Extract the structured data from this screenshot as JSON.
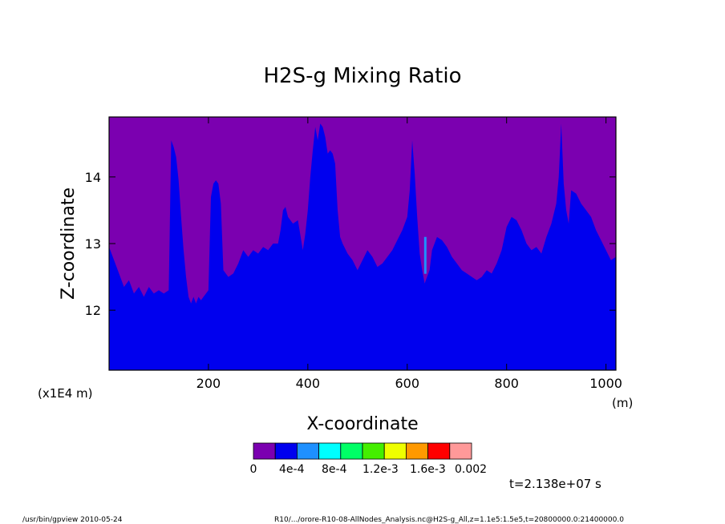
{
  "chart_data": {
    "type": "heatmap",
    "title": "H2S-g Mixing Ratio",
    "xlabel": "X-coordinate",
    "ylabel": "Z-coordinate",
    "x_unit": "(m)",
    "z_unit": "(x1E4 m)",
    "xlim": [
      0,
      1020
    ],
    "zlim": [
      11.1,
      14.9
    ],
    "x_ticks": [
      200,
      400,
      600,
      800,
      1000
    ],
    "z_ticks": [
      12,
      13,
      14
    ],
    "background_value_color": "#7b00b0",
    "body_value_color": "#0000ee",
    "upper_boundary_profile": {
      "description": "top edge of the blue (4e-4 to 8e-4) region, x in m, z in x1E4 m",
      "x": [
        0,
        10,
        20,
        30,
        40,
        50,
        60,
        70,
        80,
        90,
        100,
        110,
        120,
        125,
        130,
        135,
        140,
        145,
        150,
        155,
        160,
        165,
        170,
        175,
        180,
        185,
        190,
        200,
        205,
        210,
        215,
        220,
        225,
        230,
        240,
        250,
        260,
        270,
        280,
        290,
        300,
        310,
        320,
        330,
        340,
        345,
        350,
        355,
        360,
        370,
        380,
        390,
        395,
        400,
        405,
        410,
        415,
        420,
        425,
        430,
        435,
        440,
        445,
        450,
        455,
        460,
        465,
        470,
        480,
        490,
        500,
        510,
        520,
        530,
        540,
        550,
        560,
        570,
        580,
        590,
        600,
        605,
        610,
        615,
        620,
        625,
        630,
        635,
        640,
        645,
        650,
        655,
        660,
        670,
        680,
        690,
        700,
        710,
        720,
        730,
        740,
        750,
        760,
        770,
        780,
        790,
        800,
        810,
        820,
        830,
        840,
        850,
        860,
        870,
        880,
        890,
        900,
        905,
        910,
        915,
        920,
        925,
        930,
        940,
        950,
        960,
        970,
        980,
        990,
        1000,
        1010,
        1020
      ],
      "z": [
        12.95,
        12.75,
        12.55,
        12.35,
        12.45,
        12.25,
        12.35,
        12.2,
        12.35,
        12.25,
        12.3,
        12.25,
        12.3,
        14.55,
        14.45,
        14.3,
        13.95,
        13.4,
        12.9,
        12.5,
        12.2,
        12.1,
        12.2,
        12.1,
        12.2,
        12.15,
        12.2,
        12.3,
        13.7,
        13.9,
        13.95,
        13.9,
        13.6,
        12.6,
        12.5,
        12.55,
        12.7,
        12.9,
        12.8,
        12.9,
        12.85,
        12.95,
        12.9,
        13.0,
        13.0,
        13.2,
        13.5,
        13.55,
        13.4,
        13.3,
        13.35,
        12.9,
        13.15,
        13.5,
        14.0,
        14.4,
        14.75,
        14.55,
        14.8,
        14.75,
        14.6,
        14.35,
        14.4,
        14.35,
        14.2,
        13.5,
        13.1,
        13.0,
        12.85,
        12.75,
        12.6,
        12.75,
        12.9,
        12.8,
        12.65,
        12.7,
        12.8,
        12.9,
        13.05,
        13.2,
        13.4,
        13.8,
        14.55,
        14.05,
        13.4,
        12.85,
        12.6,
        12.4,
        12.5,
        12.6,
        12.9,
        13.0,
        13.1,
        13.05,
        12.95,
        12.8,
        12.7,
        12.6,
        12.55,
        12.5,
        12.45,
        12.5,
        12.6,
        12.55,
        12.7,
        12.9,
        13.25,
        13.4,
        13.35,
        13.2,
        13.0,
        12.9,
        12.95,
        12.85,
        13.1,
        13.3,
        13.6,
        14.0,
        14.8,
        13.9,
        13.5,
        13.3,
        13.8,
        13.75,
        13.6,
        13.5,
        13.4,
        13.2,
        13.05,
        12.9,
        12.75,
        12.8
      ]
    },
    "legend": {
      "labels": [
        "0",
        "4e-4",
        "8e-4",
        "1.2e-3",
        "1.6e-3",
        "0.002"
      ],
      "colors": [
        "#7b00b0",
        "#0000ee",
        "#1e90ff",
        "#00ffff",
        "#00ff66",
        "#44ee00",
        "#eeff00",
        "#ff9900",
        "#ff0000",
        "#ff9999"
      ]
    },
    "time_label": "t=2.138e+07 s"
  },
  "footer": {
    "left": "/usr/bin/gpview  2010-05-24",
    "right": "R10/.../orore-R10-08-AllNodes_Analysis.nc@H2S-g_All,z=1.1e5:1.5e5,t=20800000.0:21400000.0"
  }
}
